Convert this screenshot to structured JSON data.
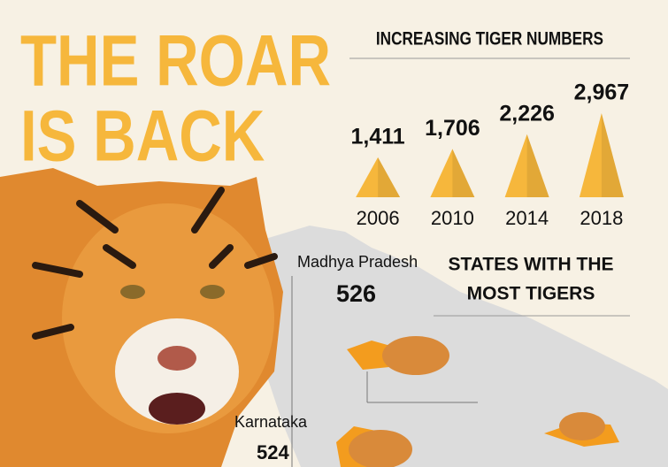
{
  "headline": [
    "THE ROAR",
    "IS BACK"
  ],
  "chart_data": {
    "type": "triangle",
    "title": "INCREASING TIGER NUMBERS",
    "categories": [
      "2006",
      "2010",
      "2014",
      "2018"
    ],
    "values": [
      1411,
      1706,
      2226,
      2967
    ],
    "value_labels": [
      "1,411",
      "1,706",
      "2,226",
      "2,967"
    ],
    "color": "#f6b73c"
  },
  "states": {
    "title_lines": [
      "STATES WITH THE",
      "MOST TIGERS"
    ],
    "items": [
      {
        "name": "Madhya Pradesh",
        "value": 526
      },
      {
        "name": "Karnataka",
        "value": 524
      }
    ]
  }
}
